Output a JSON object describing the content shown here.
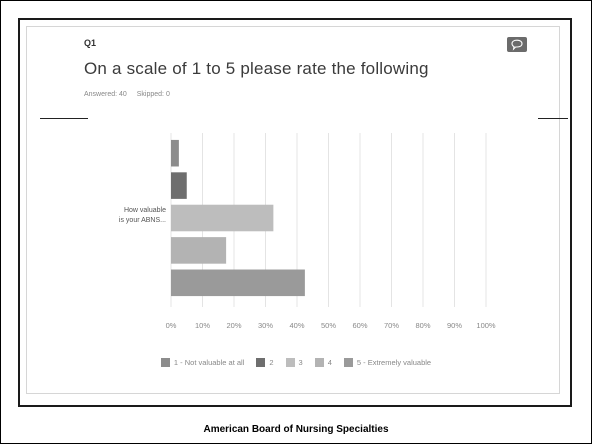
{
  "question": {
    "number": "Q1",
    "title": "On a scale of 1 to 5 please rate the following",
    "answered": "Answered: 40",
    "skipped": "Skipped: 0"
  },
  "icons": {
    "comment": "speech-bubble-icon"
  },
  "chart_data": {
    "type": "bar",
    "orientation": "horizontal",
    "categories": [
      "How valuable is your ABNS..."
    ],
    "category_label_lines": [
      "How valuable",
      "is your ABNS..."
    ],
    "series": [
      {
        "name": "1 - Not valuable at all",
        "values": [
          2.5
        ],
        "color": "#8c8c8c"
      },
      {
        "name": "2",
        "values": [
          5
        ],
        "color": "#6e6e6e"
      },
      {
        "name": "3",
        "values": [
          32.5
        ],
        "color": "#bdbdbd"
      },
      {
        "name": "4",
        "values": [
          17.5
        ],
        "color": "#b3b3b3"
      },
      {
        "name": "5 - Extremely valuable",
        "values": [
          42.5
        ],
        "color": "#9a9a9a"
      }
    ],
    "xlim": [
      0,
      100
    ],
    "xticks": [
      "0%",
      "10%",
      "20%",
      "30%",
      "40%",
      "50%",
      "60%",
      "70%",
      "80%",
      "90%",
      "100%"
    ],
    "grid": true,
    "legend_position": "bottom"
  },
  "footer": "American Board of Nursing Specialties"
}
